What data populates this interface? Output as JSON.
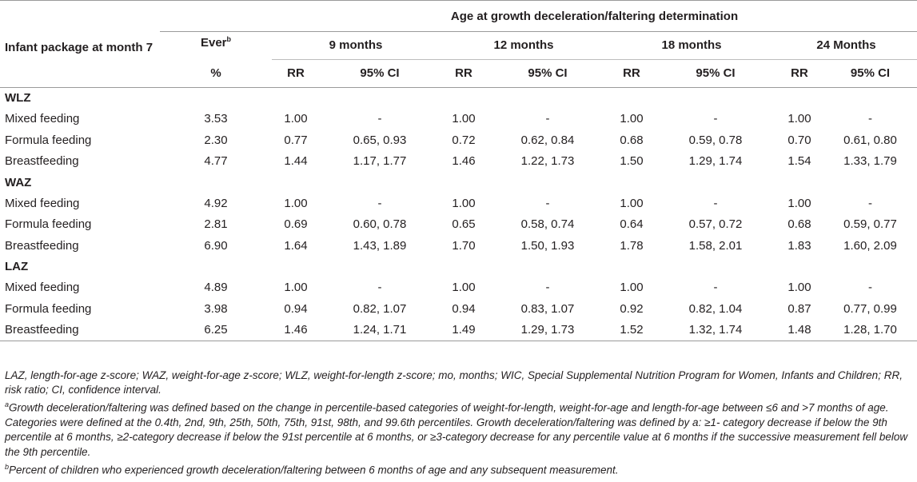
{
  "table": {
    "header": {
      "row_label": "Infant package at month 7",
      "age_group_title": "Age at growth deceleration/faltering determination",
      "ever_label": "Ever",
      "ever_sup": "b",
      "ever_unit": "%",
      "ages": [
        "9 months",
        "12 months",
        "18 months",
        "24 Months"
      ],
      "rr_label": "RR",
      "ci_label": "95% CI"
    },
    "groups": [
      {
        "name": "WLZ",
        "rows": [
          {
            "label": "Mixed feeding",
            "ever": "3.53",
            "vals": [
              "1.00",
              "-",
              "1.00",
              "-",
              "1.00",
              "-",
              "1.00",
              "-"
            ]
          },
          {
            "label": "Formula feeding",
            "ever": "2.30",
            "vals": [
              "0.77",
              "0.65, 0.93",
              "0.72",
              "0.62, 0.84",
              "0.68",
              "0.59, 0.78",
              "0.70",
              "0.61, 0.80"
            ]
          },
          {
            "label": "Breastfeeding",
            "ever": "4.77",
            "vals": [
              "1.44",
              "1.17, 1.77",
              "1.46",
              "1.22, 1.73",
              "1.50",
              "1.29, 1.74",
              "1.54",
              "1.33, 1.79"
            ]
          }
        ]
      },
      {
        "name": "WAZ",
        "rows": [
          {
            "label": "Mixed feeding",
            "ever": "4.92",
            "vals": [
              "1.00",
              "-",
              "1.00",
              "-",
              "1.00",
              "-",
              "1.00",
              "-"
            ]
          },
          {
            "label": "Formula feeding",
            "ever": "2.81",
            "vals": [
              "0.69",
              "0.60, 0.78",
              "0.65",
              "0.58, 0.74",
              "0.64",
              "0.57, 0.72",
              "0.68",
              "0.59, 0.77"
            ]
          },
          {
            "label": "Breastfeeding",
            "ever": "6.90",
            "vals": [
              "1.64",
              "1.43, 1.89",
              "1.70",
              "1.50, 1.93",
              "1.78",
              "1.58, 2.01",
              "1.83",
              "1.60, 2.09"
            ]
          }
        ]
      },
      {
        "name": "LAZ",
        "rows": [
          {
            "label": "Mixed feeding",
            "ever": "4.89",
            "vals": [
              "1.00",
              "-",
              "1.00",
              "-",
              "1.00",
              "-",
              "1.00",
              "-"
            ]
          },
          {
            "label": "Formula feeding",
            "ever": "3.98",
            "vals": [
              "0.94",
              "0.82, 1.07",
              "0.94",
              "0.83, 1.07",
              "0.92",
              "0.82, 1.04",
              "0.87",
              "0.77, 0.99"
            ]
          },
          {
            "label": "Breastfeeding",
            "ever": "6.25",
            "vals": [
              "1.46",
              "1.24, 1.71",
              "1.49",
              "1.29, 1.73",
              "1.52",
              "1.32, 1.74",
              "1.48",
              "1.28, 1.70"
            ]
          }
        ]
      }
    ]
  },
  "footnotes": {
    "abbrev": "LAZ, length-for-age z-score; WAZ, weight-for-age z-score; WLZ, weight-for-length z-score; mo, months; WIC, Special Supplemental Nutrition Program for Women, Infants and Children; RR, risk ratio; CI, confidence interval.",
    "a_marker": "a",
    "a_text": "Growth deceleration/faltering was defined based on the change in percentile-based categories of weight-for-length, weight-for-age and length-for-age between ≤6 and >7 months of age. Categories were defined at the 0.4th, 2nd, 9th, 25th, 50th, 75th, 91st, 98th, and 99.6th percentiles. Growth deceleration/faltering was defined by a: ≥1- category decrease if below the 9th percentile at 6 months, ≥2-category decrease if below the 91st percentile at 6 months, or ≥3-category decrease for any percentile value at 6 months if the successive measurement fell below the 9th percentile.",
    "b_marker": "b",
    "b_text": "Percent of children who experienced growth deceleration/faltering between 6 months of age and any subsequent measurement."
  }
}
